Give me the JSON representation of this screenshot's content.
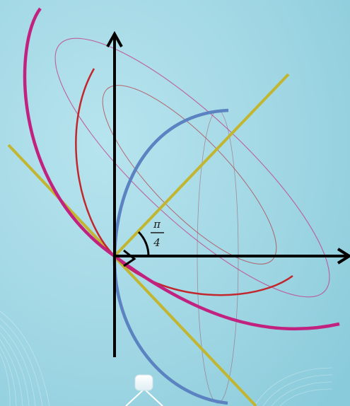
{
  "angle_label": {
    "numerator": "π",
    "denominator": "4"
  },
  "colors": {
    "background_light": "#a9dde8",
    "background_dark": "#7fc6d6",
    "axes": "#000000",
    "tangent_line": "#c2b52f",
    "blue_curve": "#5b82c1",
    "red_curve": "#c1272d",
    "magenta_curve": "#c2227f",
    "thin_magenta": "#c14a8f",
    "thin_red": "#b3323a",
    "watermark": "#ffffff"
  },
  "icons": {
    "x_axis_arrow": "arrow-right-icon",
    "y_axis_arrow": "arrow-up-icon",
    "angle_marker": "angle-arc-icon",
    "bottom_node": "rounded-square-node-icon"
  }
}
